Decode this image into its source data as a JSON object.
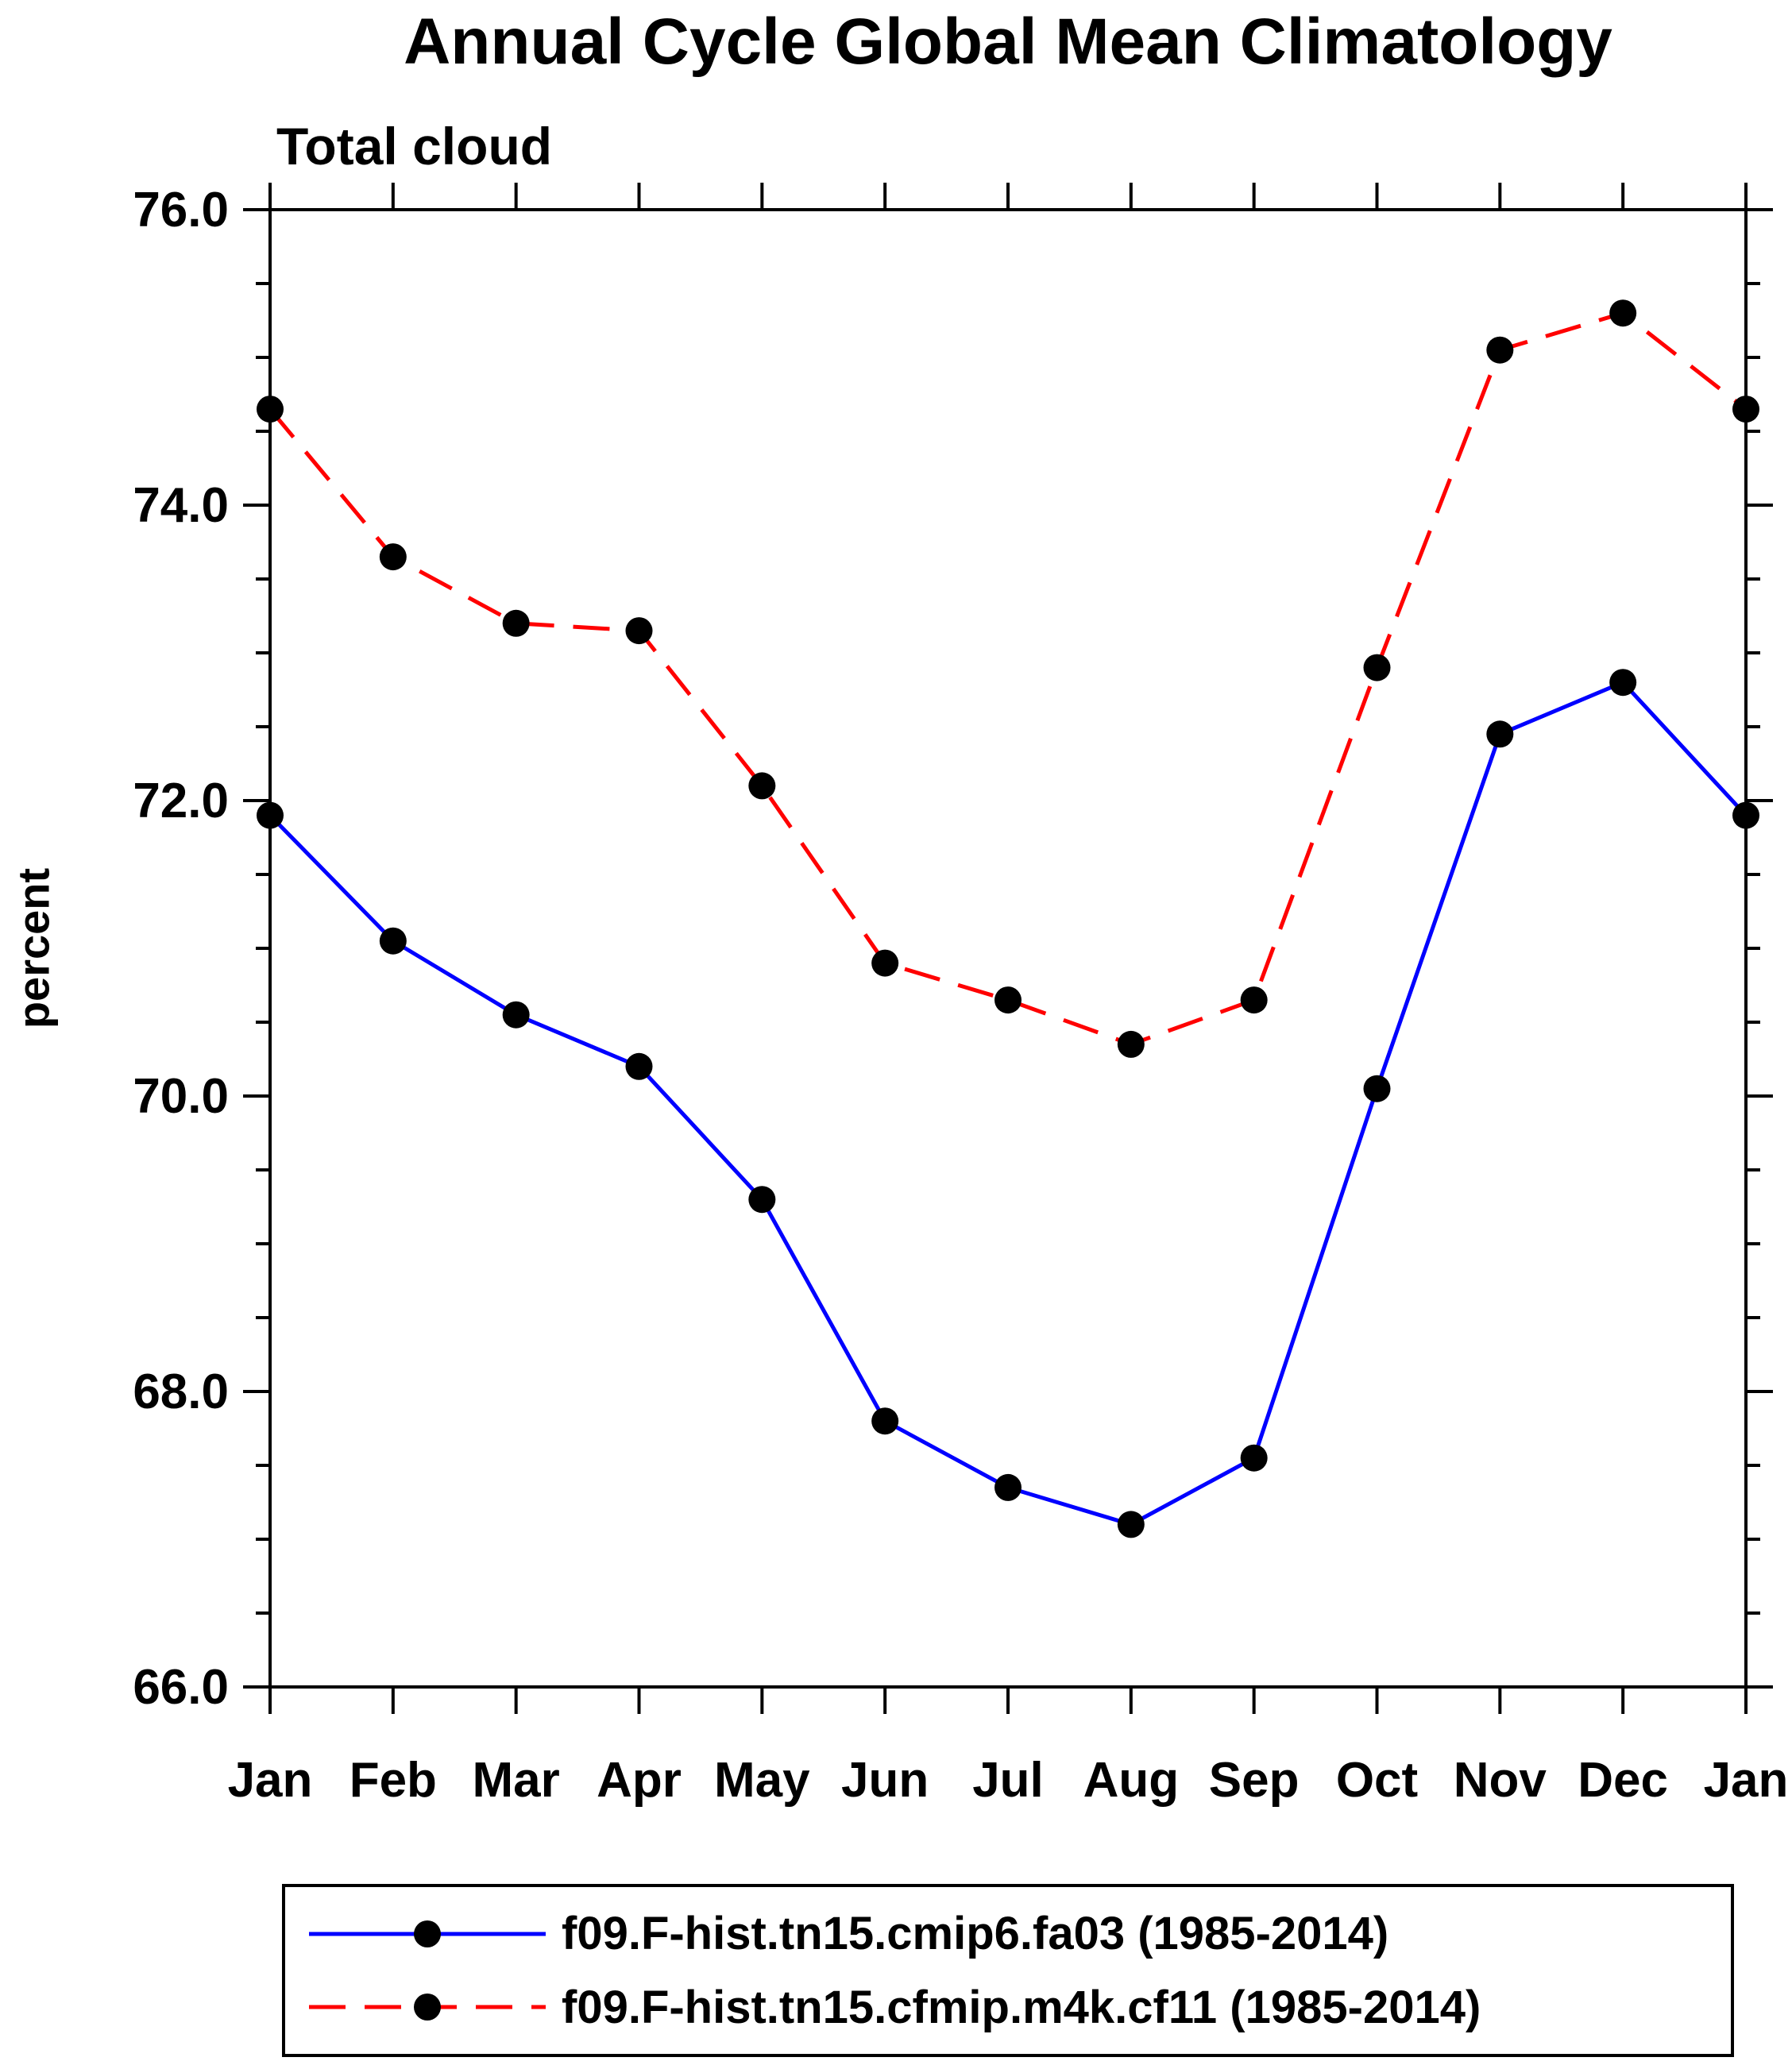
{
  "chart_data": {
    "type": "line",
    "title": "Annual Cycle Global Mean Climatology",
    "subtitle": "Total cloud",
    "ylabel": "percent",
    "xlabel": "",
    "ylim": [
      66.0,
      76.0
    ],
    "ytick_major_values": [
      66,
      68,
      70,
      72,
      74,
      76
    ],
    "ytick_major_labels": [
      "66.0",
      "68.0",
      "70.0",
      "72.0",
      "74.0",
      "76.0"
    ],
    "ytick_minor_step": 0.5,
    "categories": [
      "Jan",
      "Feb",
      "Mar",
      "Apr",
      "May",
      "Jun",
      "Jul",
      "Aug",
      "Sep",
      "Oct",
      "Nov",
      "Dec",
      "Jan"
    ],
    "grid": false,
    "legend_position": "bottom",
    "colors": {
      "axis": "#000000",
      "marker": "#000000",
      "series1": "#0000ff",
      "series2": "#ff0000"
    },
    "series": [
      {
        "name": "f09.F-hist.tn15.cmip6.fa03 (1985-2014)",
        "line_color": "#0000ff",
        "line_style": "solid",
        "marker": "circle",
        "marker_color": "#000000",
        "values": [
          71.9,
          71.05,
          70.55,
          70.2,
          69.3,
          67.8,
          67.35,
          67.1,
          67.55,
          70.05,
          72.45,
          72.8,
          71.9
        ]
      },
      {
        "name": "f09.F-hist.tn15.cfmip.m4k.cf11 (1985-2014)",
        "line_color": "#ff0000",
        "line_style": "dashed",
        "marker": "circle",
        "marker_color": "#000000",
        "values": [
          74.65,
          73.65,
          73.2,
          73.15,
          72.1,
          70.9,
          70.65,
          70.35,
          70.65,
          72.9,
          75.05,
          75.3,
          74.65
        ]
      }
    ]
  }
}
